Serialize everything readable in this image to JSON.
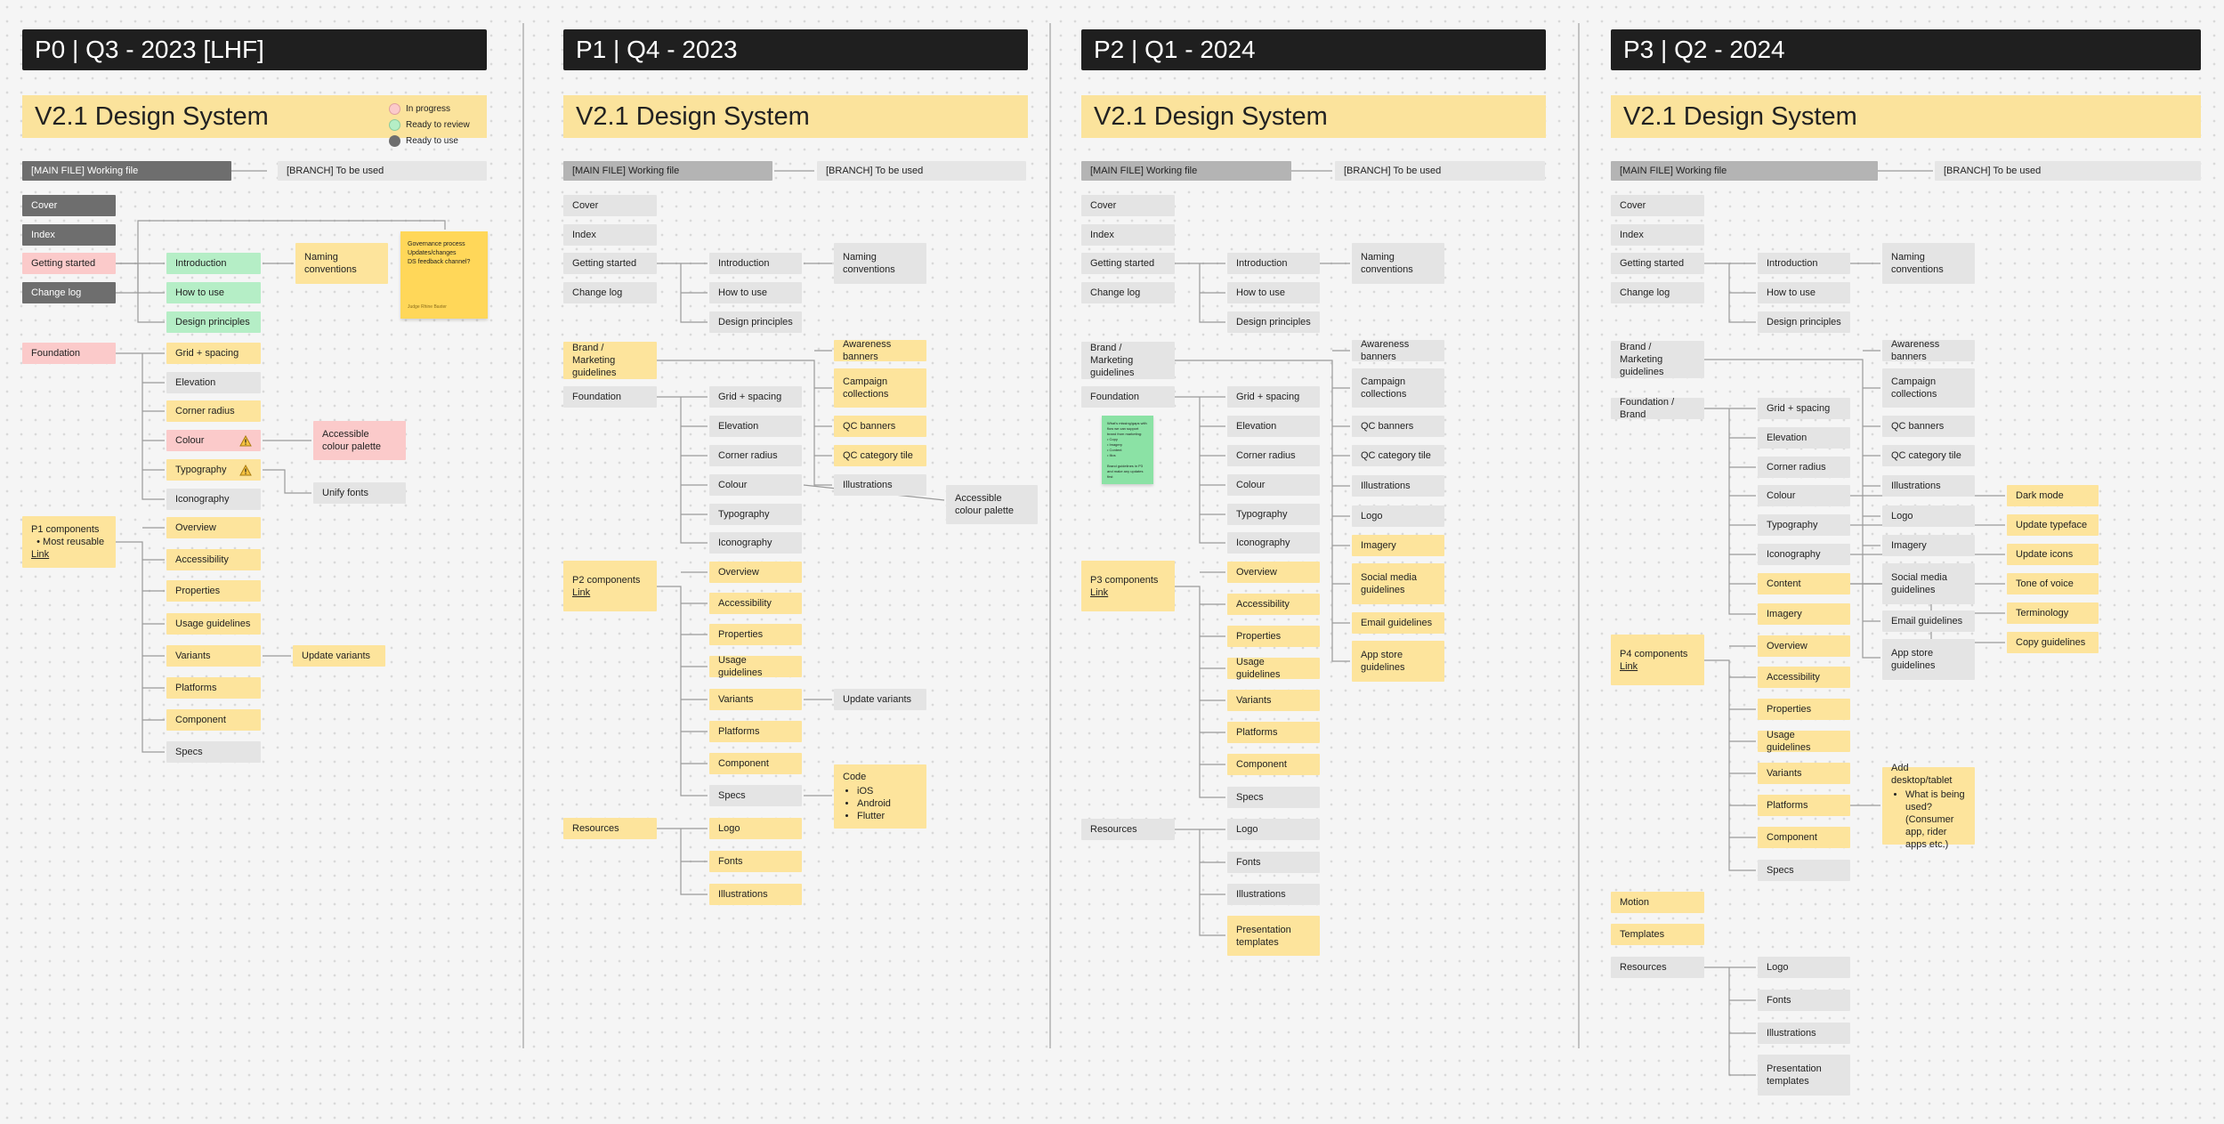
{
  "phases": [
    {
      "header": "P0 | Q3 - 2023 [LHF]",
      "title": "V2.1 Design System"
    },
    {
      "header": "P1 | Q4 - 2023",
      "title": "V2.1 Design System"
    },
    {
      "header": "P2 | Q1 - 2024",
      "title": "V2.1 Design System"
    },
    {
      "header": "P3 | Q2 - 2024",
      "title": "V2.1 Design System"
    }
  ],
  "legend": [
    {
      "label": "In progress",
      "color": "#fbcaca"
    },
    {
      "label": "Ready to review",
      "color": "#b5eec6"
    },
    {
      "label": "Ready to use",
      "color": "#6e6e6e"
    }
  ],
  "colors": {
    "yellow": "#fde49c",
    "grey": "#e4e4e4",
    "dark": "#6e6e6e",
    "red": "#fbcaca",
    "green": "#b5eec6"
  },
  "p0": {
    "main_file": "[MAIN FILE] Working file",
    "branch": "[BRANCH] To be used",
    "cover": "Cover",
    "index": "Index",
    "getting_started": "Getting started",
    "change_log": "Change log",
    "introduction": "Introduction",
    "how_to_use": "How to use",
    "design_principles": "Design principles",
    "naming_conventions": "Naming conventions",
    "sticky_lines": [
      "Governance process",
      "Updates/changes",
      "DS feedback channel?"
    ],
    "sticky_author": "Judge Rhine Baxter",
    "foundation": "Foundation",
    "grid": "Grid + spacing",
    "elevation": "Elevation",
    "corner_radius": "Corner radius",
    "colour": "Colour",
    "typography": "Typography",
    "iconography": "Iconography",
    "accessible_colour": "Accessible colour palette",
    "unify_fonts": "Unify fonts",
    "components_title": "P1 components",
    "components_bullet": "Most reusable",
    "components_link": "Link",
    "overview": "Overview",
    "accessibility": "Accessibility",
    "properties": "Properties",
    "usage_guidelines": "Usage guidelines",
    "variants": "Variants",
    "update_variants": "Update variants",
    "platforms": "Platforms",
    "component": "Component",
    "specs": "Specs"
  },
  "p1": {
    "main_file": "[MAIN FILE] Working file",
    "branch": "[BRANCH] To be used",
    "cover": "Cover",
    "index": "Index",
    "getting_started": "Getting started",
    "change_log": "Change log",
    "introduction": "Introduction",
    "how_to_use": "How to use",
    "design_principles": "Design principles",
    "naming_conventions": "Naming conventions",
    "brand_marketing": "Brand / Marketing guidelines",
    "awareness_banners": "Awareness banners",
    "campaign_collections": "Campaign collections",
    "qc_banners": "QC banners",
    "qc_category_tile": "QC category tile",
    "illustrations": "Illustrations",
    "foundation": "Foundation",
    "grid": "Grid + spacing",
    "elevation": "Elevation",
    "corner_radius": "Corner radius",
    "colour": "Colour",
    "typography": "Typography",
    "iconography": "Iconography",
    "accessible_colour": "Accessible colour palette",
    "components_title": "P2 components",
    "components_link": "Link",
    "overview": "Overview",
    "accessibility": "Accessibility",
    "properties": "Properties",
    "usage_guidelines": "Usage guidelines",
    "variants": "Variants",
    "update_variants": "Update variants",
    "platforms": "Platforms",
    "component": "Component",
    "specs": "Specs",
    "code_title": "Code",
    "code_items": [
      "iOS",
      "Android",
      "Flutter"
    ],
    "resources": "Resources",
    "logo": "Logo",
    "fonts": "Fonts",
    "res_illustrations": "Illustrations"
  },
  "p2": {
    "main_file": "[MAIN FILE] Working file",
    "branch": "[BRANCH] To be used",
    "cover": "Cover",
    "index": "Index",
    "getting_started": "Getting started",
    "change_log": "Change log",
    "introduction": "Introduction",
    "how_to_use": "How to use",
    "design_principles": "Design principles",
    "naming_conventions": "Naming conventions",
    "brand_marketing": "Brand / Marketing guidelines",
    "awareness_banners": "Awareness banners",
    "campaign_collections": "Campaign collections",
    "qc_banners": "QC banners",
    "qc_category_tile": "QC category tile",
    "illustrations": "Illustrations",
    "logo_b": "Logo",
    "imagery": "Imagery",
    "social_media": "Social media guidelines",
    "email_guidelines": "Email guidelines",
    "app_store": "App store guidelines",
    "foundation": "Foundation",
    "grid": "Grid + spacing",
    "elevation": "Elevation",
    "corner_radius": "Corner radius",
    "colour": "Colour",
    "typography": "Typography",
    "iconography": "Iconography",
    "sticky_lines": [
      "What's missing/gaps with",
      "flow we can support",
      "brand from marketing:",
      "• Copy",
      "• Imagery",
      "• Content",
      "• Illos",
      "",
      "Brand guidelines in P3",
      "and make any updates",
      "first"
    ],
    "sticky_author": "",
    "components_title": "P3 components",
    "components_link": "Link",
    "overview": "Overview",
    "accessibility": "Accessibility",
    "properties": "Properties",
    "usage_guidelines": "Usage guidelines",
    "variants": "Variants",
    "platforms": "Platforms",
    "component": "Component",
    "specs": "Specs",
    "resources": "Resources",
    "logo": "Logo",
    "fonts": "Fonts",
    "res_illustrations": "Illustrations",
    "presentation_templates": "Presentation templates"
  },
  "p3": {
    "main_file": "[MAIN FILE] Working file",
    "branch": "[BRANCH] To be used",
    "cover": "Cover",
    "index": "Index",
    "getting_started": "Getting started",
    "change_log": "Change log",
    "introduction": "Introduction",
    "how_to_use": "How to use",
    "design_principles": "Design principles",
    "naming_conventions": "Naming conventions",
    "brand_marketing": "Brand / Marketing guidelines",
    "awareness_banners": "Awareness banners",
    "campaign_collections": "Campaign collections",
    "qc_banners": "QC banners",
    "qc_category_tile": "QC category tile",
    "illustrations": "Illustrations",
    "logo_b": "Logo",
    "imagery_b": "Imagery",
    "social_media": "Social media guidelines",
    "email_guidelines": "Email guidelines",
    "app_store": "App store guidelines",
    "foundation_brand": "Foundation / Brand",
    "grid": "Grid + spacing",
    "elevation": "Elevation",
    "corner_radius": "Corner radius",
    "colour": "Colour",
    "typography": "Typography",
    "iconography": "Iconography",
    "content": "Content",
    "imagery": "Imagery",
    "dark_mode": "Dark mode",
    "update_typeface": "Update typeface",
    "update_icons": "Update icons",
    "tone_of_voice": "Tone of voice",
    "terminology": "Terminology",
    "copy_guidelines": "Copy guidelines",
    "components_title": "P4 components",
    "components_link": "Link",
    "overview": "Overview",
    "accessibility": "Accessibility",
    "properties": "Properties",
    "usage_guidelines": "Usage guidelines",
    "variants": "Variants",
    "platforms": "Platforms",
    "component": "Component",
    "specs": "Specs",
    "desktop_title": "Add desktop/tablet",
    "desktop_bullet": "What is being used? (Consumer app, rider apps etc.)",
    "motion": "Motion",
    "templates": "Templates",
    "resources": "Resources",
    "logo": "Logo",
    "fonts": "Fonts",
    "res_illustrations": "Illustrations",
    "presentation_templates": "Presentation templates"
  }
}
